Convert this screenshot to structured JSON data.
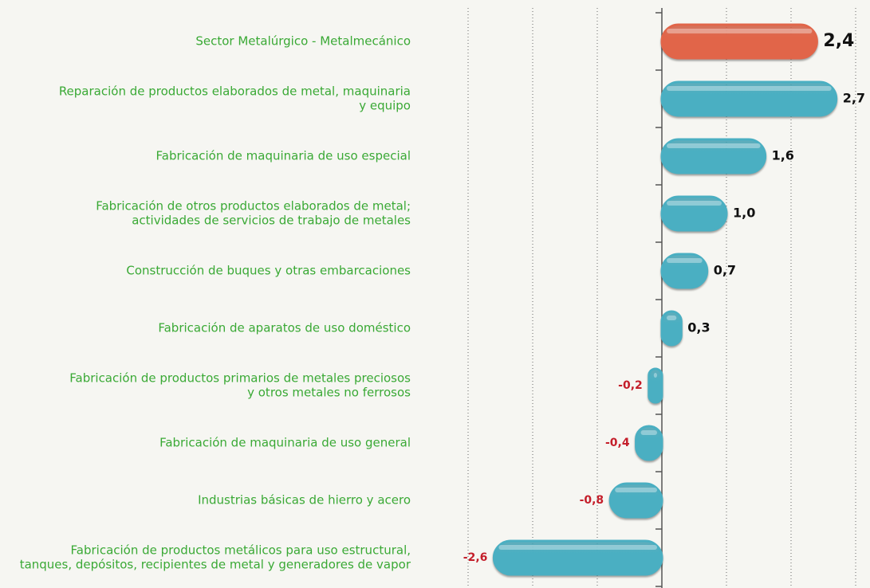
{
  "chart_data": {
    "type": "bar",
    "orientation": "horizontal",
    "categories": [
      [
        "Sector Metalúrgico - Metalmecánico"
      ],
      [
        "Reparación de productos elaborados de metal, maquinaria",
        "y equipo"
      ],
      [
        "Fabricación de maquinaria de uso especial"
      ],
      [
        "Fabricación de otros productos elaborados de metal;",
        "actividades de servicios de trabajo de metales"
      ],
      [
        "Construcción de buques y otras embarcaciones"
      ],
      [
        "Fabricación de aparatos de uso doméstico"
      ],
      [
        "Fabricación de productos primarios de metales preciosos",
        "y otros metales no ferrosos"
      ],
      [
        "Fabricación de maquinaria de uso general"
      ],
      [
        "Industrias básicas de hierro y acero"
      ],
      [
        "Fabricación de productos metálicos para uso estructural,",
        "tanques, depósitos, recipientes de metal y generadores de vapor"
      ]
    ],
    "values": [
      2.4,
      2.7,
      1.6,
      1.0,
      0.7,
      0.3,
      -0.2,
      -0.4,
      -0.8,
      -2.6
    ],
    "value_labels": [
      "2,4",
      "2,7",
      "1,6",
      "1,0",
      "0,7",
      "0,3",
      "-0,2",
      "-0,4",
      "-0,8",
      "-2,6"
    ],
    "color": "#4cb4c8",
    "highlight_index": 0,
    "highlight_color": "#e8684b",
    "xlim": [
      -3,
      3
    ],
    "xticks": [
      -3,
      -2,
      -1,
      0,
      1,
      2,
      3
    ],
    "grid": true
  }
}
